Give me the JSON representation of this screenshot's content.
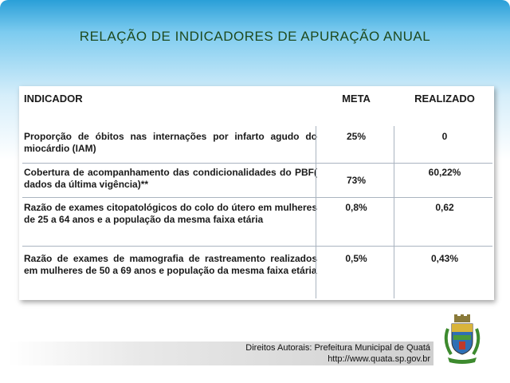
{
  "title": "RELAÇÃO  DE  INDICADORES  DE  APURAÇÃO   ANUAL",
  "table": {
    "headers": {
      "indicator": "INDICADOR",
      "target": "META",
      "achieved": "REALIZADO"
    },
    "rows": [
      {
        "indicator": "Proporção de óbitos nas internações por infarto agudo do miocárdio (IAM)",
        "target": "25%",
        "achieved": "0"
      },
      {
        "indicator": "Cobertura de acompanhamento das condicionalidades do PBF( dados da última vigência)**",
        "target": "73%",
        "achieved": "60,22%"
      },
      {
        "indicator": "Razão de exames citopatológicos do colo do útero em mulheres de 25 a 64 anos e a população da mesma faixa etária",
        "target": "0,8%",
        "achieved": "0,62"
      },
      {
        "indicator": "Razão de exames de mamografia de rastreamento realizados em mulheres de 50 a 69 anos e população da mesma faixa etária",
        "target": "0,5%",
        "achieved": "0,43%"
      }
    ]
  },
  "footer": {
    "copyright": "Direitos Autorais: Prefeitura Municipal de Quatá",
    "url": "http://www.quata.sp.gov.br"
  },
  "colors": {
    "title": "#1e4a1e",
    "header_gradient_top": "#2a9fd8",
    "grid": "#aab4c0"
  },
  "icons": {
    "crest": "municipal-coat-of-arms"
  }
}
